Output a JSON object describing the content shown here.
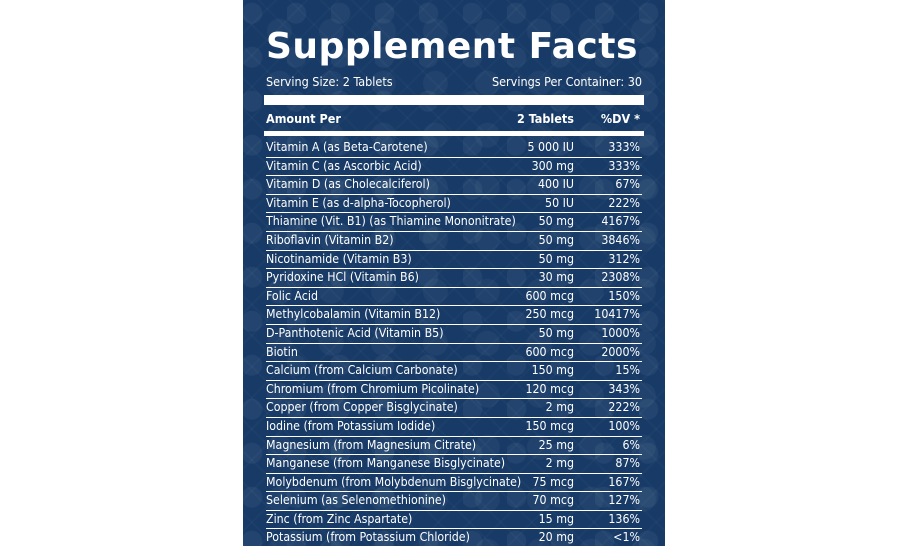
{
  "title": "Supplement Facts",
  "serving_size": "Serving Size: 2 Tablets",
  "servings_per_container": "Servings Per Container: 30",
  "header": {
    "name": "Amount Per",
    "amount": "2 Tablets",
    "dv": "%DV *"
  },
  "rows": [
    {
      "name": "Vitamin A (as Beta-Carotene)",
      "amount": "5 000 IU",
      "dv": "333%"
    },
    {
      "name": "Vitamin C (as Ascorbic Acid)",
      "amount": "300 mg",
      "dv": "333%"
    },
    {
      "name": "Vitamin D (as Cholecalciferol)",
      "amount": "400 IU",
      "dv": "67%"
    },
    {
      "name": "Vitamin E (as d-alpha-Tocopherol)",
      "amount": "50 IU",
      "dv": "222%"
    },
    {
      "name": "Thiamine (Vit. B1) (as Thiamine Mononitrate)",
      "amount": "50 mg",
      "dv": "4167%"
    },
    {
      "name": "Riboflavin (Vitamin B2)",
      "amount": "50 mg",
      "dv": "3846%"
    },
    {
      "name": "Nicotinamide (Vitamin B3)",
      "amount": "50 mg",
      "dv": "312%"
    },
    {
      "name": "Pyridoxine HCl (Vitamin B6)",
      "amount": "30 mg",
      "dv": "2308%"
    },
    {
      "name": "Folic Acid",
      "amount": "600 mcg",
      "dv": "150%"
    },
    {
      "name": "Methylcobalamin (Vitamin B12)",
      "amount": "250 mcg",
      "dv": "10417%"
    },
    {
      "name": "D-Panthotenic Acid (Vitamin B5)",
      "amount": "50 mg",
      "dv": "1000%"
    },
    {
      "name": "Biotin",
      "amount": "600 mcg",
      "dv": "2000%"
    },
    {
      "name": "Calcium (from Calcium Carbonate)",
      "amount": "150 mg",
      "dv": "15%"
    },
    {
      "name": "Chromium (from Chromium Picolinate)",
      "amount": "120 mcg",
      "dv": "343%"
    },
    {
      "name": "Copper (from Copper Bisglycinate)",
      "amount": "2 mg",
      "dv": "222%"
    },
    {
      "name": "Iodine (from Potassium Iodide)",
      "amount": "150 mcg",
      "dv": "100%"
    },
    {
      "name": "Magnesium (from Magnesium Citrate)",
      "amount": "25 mg",
      "dv": "6%"
    },
    {
      "name": "Manganese (from Manganese Bisglycinate)",
      "amount": "2 mg",
      "dv": "87%"
    },
    {
      "name": "Molybdenum (from Molybdenum Bisglycinate)",
      "amount": "75 mcg",
      "dv": "167%"
    },
    {
      "name": "Selenium (as Selenomethionine)",
      "amount": "70 mcg",
      "dv": "127%"
    },
    {
      "name": "Zinc (from Zinc Aspartate)",
      "amount": "15 mg",
      "dv": "136%"
    },
    {
      "name": "Potassium (from Potassium Chloride)",
      "amount": "20 mg",
      "dv": "<1%"
    }
  ]
}
